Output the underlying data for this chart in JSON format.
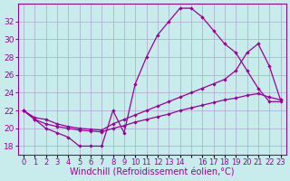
{
  "background_color": "#c8ecec",
  "line_color": "#990099",
  "grid_color": "#aaaacc",
  "x_hours": [
    0,
    1,
    2,
    3,
    4,
    5,
    6,
    7,
    8,
    9,
    10,
    11,
    12,
    13,
    14,
    15,
    16,
    17,
    18,
    19,
    20,
    21,
    22,
    23
  ],
  "temp_line": [
    22,
    21,
    20,
    19.5,
    19,
    18,
    18,
    18,
    22,
    19.5,
    25,
    28,
    30.5,
    32,
    33.5,
    33.5,
    32.5,
    31,
    29.5,
    28.5,
    26.5,
    24.5,
    23,
    23
  ],
  "wind_line1": [
    22,
    21,
    20.5,
    20.2,
    20,
    19.8,
    19.7,
    19.6,
    20.0,
    20.3,
    20.7,
    21.0,
    21.3,
    21.6,
    22.0,
    22.3,
    22.6,
    22.9,
    23.2,
    23.4,
    23.7,
    23.9,
    23.5,
    23.2
  ],
  "wind_line2": [
    22,
    21.2,
    21.0,
    20.5,
    20.2,
    20.0,
    19.9,
    19.8,
    20.5,
    21.0,
    21.5,
    22.0,
    22.5,
    23.0,
    23.5,
    24.0,
    24.5,
    25.0,
    25.5,
    26.5,
    28.5,
    29.5,
    27.0,
    23.2
  ],
  "ylim": [
    17,
    34
  ],
  "yticks": [
    18,
    20,
    22,
    24,
    26,
    28,
    30,
    32
  ],
  "xtick_positions": [
    0,
    1,
    2,
    3,
    4,
    5,
    6,
    7,
    8,
    9,
    10,
    11,
    12,
    13,
    14,
    15,
    16,
    17,
    18,
    19,
    20,
    21,
    22,
    23
  ],
  "xtick_labels": [
    "0",
    "1",
    "2",
    "3",
    "4",
    "5",
    "6",
    "7",
    "8",
    "9",
    "10",
    "11",
    "12",
    "13",
    "14",
    "",
    "16",
    "17",
    "18",
    "19",
    "20",
    "21",
    "22",
    "23"
  ],
  "xlabel": "Windchill (Refroidissement éolien,°C)",
  "xlabel_fontsize": 7,
  "tick_fontsize": 6.5
}
